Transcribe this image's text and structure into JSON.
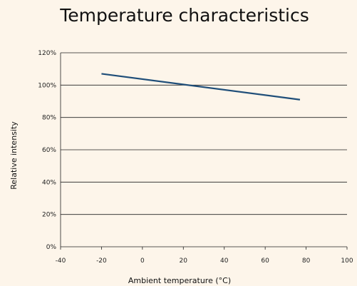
{
  "chart_data": {
    "type": "line",
    "title": "Temperature characteristics",
    "xlabel": "Ambient temperature (°C)",
    "ylabel": "Relative intensity",
    "xlim": [
      -40,
      100
    ],
    "ylim": [
      0,
      120
    ],
    "x_ticks": [
      -40,
      -20,
      0,
      20,
      40,
      60,
      80,
      100
    ],
    "x_tick_labels": [
      "-40",
      "-20",
      "0",
      "20",
      "40",
      "60",
      "80",
      "100"
    ],
    "y_ticks": [
      0,
      20,
      40,
      60,
      80,
      100,
      120
    ],
    "y_tick_labels": [
      "0%",
      "20%",
      "40%",
      "60%",
      "80%",
      "100%",
      "120%"
    ],
    "grid": "horizontal",
    "legend": "none",
    "series": [
      {
        "color": "#1f4e79",
        "points": [
          [
            -20,
            107
          ],
          [
            77,
            91
          ]
        ]
      }
    ],
    "colors": {
      "background": "#fdf5ea",
      "gridline": "#222222",
      "axis": "#222222"
    }
  }
}
